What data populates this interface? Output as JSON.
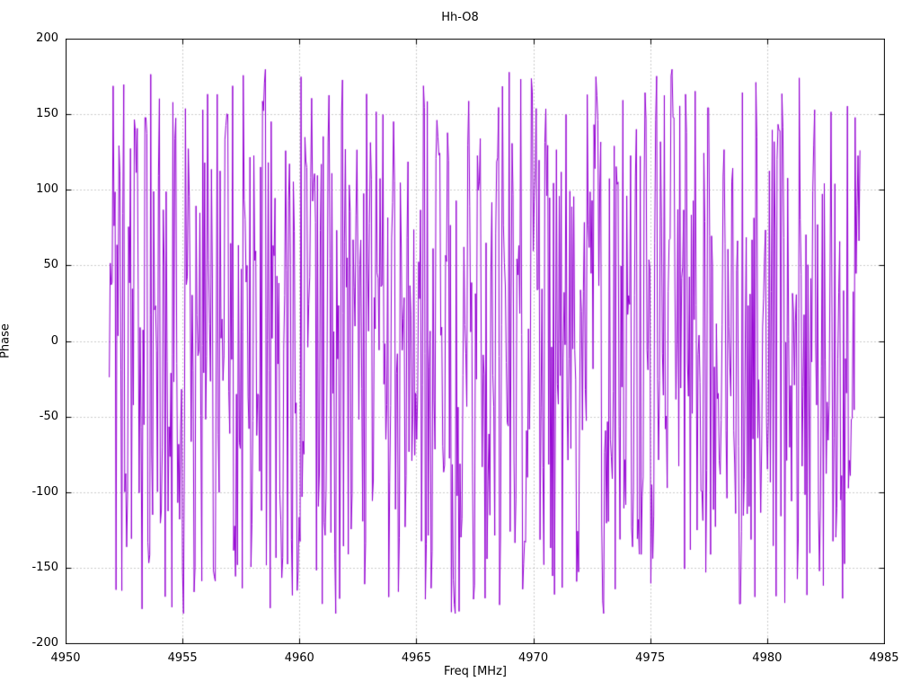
{
  "chart": {
    "title": "Hh-O8",
    "xlabel": "Freq [MHz]",
    "ylabel": "Phase"
  },
  "chart_data": {
    "type": "line",
    "title": "Hh-O8",
    "xlabel": "Freq [MHz]",
    "ylabel": "Phase",
    "xlim": [
      4950,
      4985
    ],
    "ylim": [
      -200,
      200
    ],
    "x_ticks": [
      4950,
      4955,
      4960,
      4965,
      4970,
      4975,
      4980,
      4985
    ],
    "y_ticks": [
      -200,
      -150,
      -100,
      -50,
      0,
      50,
      100,
      150,
      200
    ],
    "grid": "dotted-major",
    "legend": "none",
    "line_color": "#9400d3",
    "background_color": "#ffffff",
    "border_color": "#000000",
    "grid_color": "#9a9a9a",
    "series": [
      {
        "name": "phase",
        "description": "wrapped interferometric phase, noise-like, values fill the range -180..180 deg",
        "x_start": 4951.85,
        "x_end": 4983.95,
        "n_points": 780,
        "y_min": -180,
        "y_max": 180,
        "distribution": "uniform-wrapped-phase",
        "seed": 424242
      }
    ]
  }
}
